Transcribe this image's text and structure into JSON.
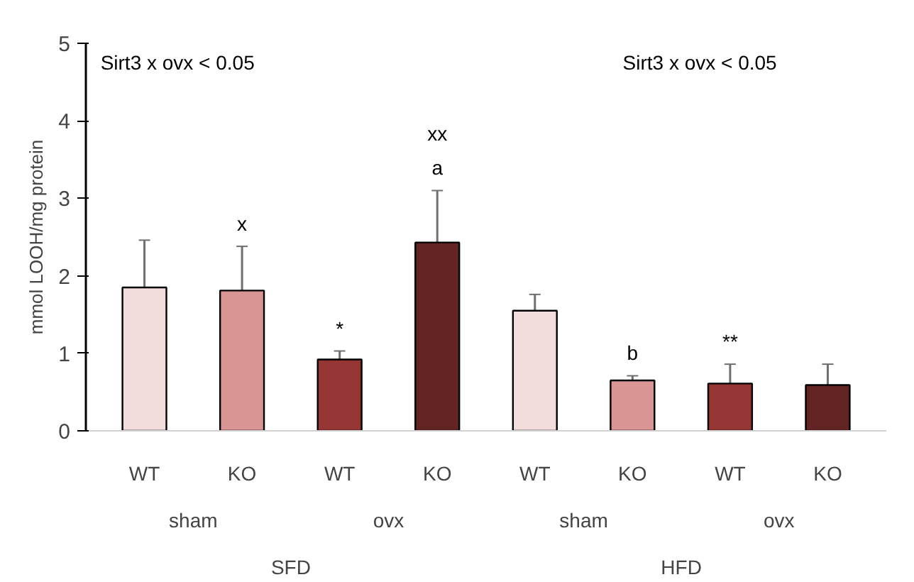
{
  "chart_data": {
    "type": "bar",
    "ylabel": "mmol LOOH/mg protein",
    "categories": [
      "WT",
      "KO",
      "WT",
      "KO",
      "WT",
      "KO",
      "WT",
      "KO"
    ],
    "values": [
      1.85,
      1.81,
      0.92,
      2.43,
      1.55,
      0.65,
      0.61,
      0.59
    ],
    "errors": [
      0.61,
      0.57,
      0.11,
      0.67,
      0.21,
      0.06,
      0.25,
      0.27
    ],
    "colors": [
      "#f2dcdc",
      "#d99594",
      "#963634",
      "#632523",
      "#f2dcdc",
      "#d99594",
      "#963634",
      "#632523"
    ],
    "ylim": [
      0,
      5
    ],
    "yticks": [
      0,
      1,
      2,
      3,
      4,
      5
    ],
    "grid": false,
    "annotations": [
      "x",
      "xx",
      "a",
      "*",
      "b",
      "**",
      "Sirt3 x ovx < 0.05",
      "Sirt3 x ovx < 0.05",
      "sham",
      "ovx",
      "sham",
      "ovx",
      "SFD",
      "HFD"
    ]
  }
}
